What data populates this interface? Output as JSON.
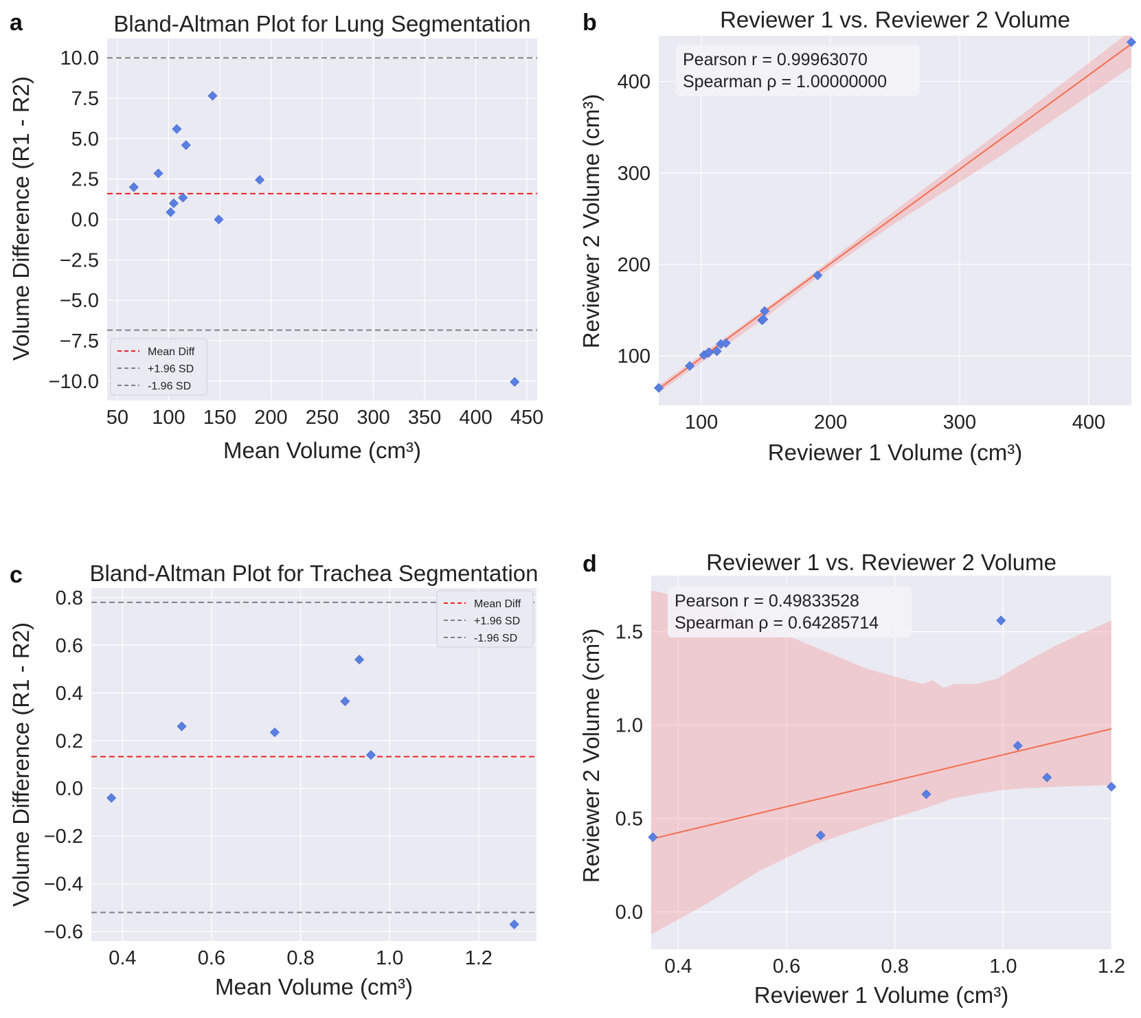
{
  "chart_data": [
    {
      "panel": "a",
      "type": "scatter",
      "title": "Bland-Altman Plot for Lung Segmentation",
      "xlabel": "Mean Volume (cm³)",
      "ylabel": "Volume Difference (R1 - R2)",
      "xlim": [
        40,
        460
      ],
      "ylim": [
        -11.2,
        11.2
      ],
      "xticks": [
        50,
        100,
        150,
        200,
        250,
        300,
        350,
        400,
        450
      ],
      "yticks": [
        -10.0,
        -7.5,
        -5.0,
        -2.5,
        0.0,
        2.5,
        5.0,
        7.5,
        10.0
      ],
      "xtick_labels": [
        "50",
        "100",
        "150",
        "200",
        "250",
        "300",
        "350",
        "400",
        "450"
      ],
      "ytick_labels": [
        "−10.0",
        "−7.5",
        "−5.0",
        "−2.5",
        "0.0",
        "2.5",
        "5.0",
        "7.5",
        "10.0"
      ],
      "points": [
        [
          66,
          2.0
        ],
        [
          90,
          2.85
        ],
        [
          102,
          0.45
        ],
        [
          105,
          1.0
        ],
        [
          108,
          5.6
        ],
        [
          114,
          1.35
        ],
        [
          117,
          4.6
        ],
        [
          143,
          7.65
        ],
        [
          149,
          0.0
        ],
        [
          189,
          2.45
        ],
        [
          438,
          -10.05
        ]
      ],
      "hlines": [
        {
          "name": "Mean Diff",
          "y": 1.6,
          "color": "#ee2222"
        },
        {
          "name": "+1.96 SD",
          "y": 10.0,
          "color": "#808080"
        },
        {
          "name": "-1.96 SD",
          "y": -6.85,
          "color": "#808080"
        }
      ],
      "legend": {
        "position": "lower-left",
        "entries": [
          "Mean Diff",
          "+1.96 SD",
          "-1.96 SD"
        ]
      }
    },
    {
      "panel": "b",
      "type": "scatter",
      "title": "Reviewer 1 vs. Reviewer 2 Volume",
      "xlabel": "Reviewer 1 Volume (cm³)",
      "ylabel": "Reviewer 2 Volume (cm³)",
      "xlim": [
        67,
        433
      ],
      "ylim": [
        46,
        450
      ],
      "xticks": [
        100,
        200,
        300,
        400
      ],
      "yticks": [
        100,
        200,
        300,
        400
      ],
      "xtick_labels": [
        "100",
        "200",
        "300",
        "400"
      ],
      "ytick_labels": [
        "100",
        "200",
        "300",
        "400"
      ],
      "points": [
        [
          67,
          65
        ],
        [
          91,
          89
        ],
        [
          102,
          101
        ],
        [
          105,
          103
        ],
        [
          106,
          104
        ],
        [
          112,
          105
        ],
        [
          115,
          113
        ],
        [
          119,
          114
        ],
        [
          147,
          139
        ],
        [
          148,
          140
        ],
        [
          149,
          149
        ],
        [
          190,
          188
        ],
        [
          433,
          443
        ]
      ],
      "fit": {
        "x": [
          67,
          433
        ],
        "y": [
          64,
          441
        ],
        "color": "#f26e50"
      },
      "band": {
        "x": [
          67,
          150,
          190,
          250,
          330,
          433
        ],
        "upper": [
          68,
          152,
          194,
          259,
          344,
          456
        ],
        "lower": [
          60,
          142,
          186,
          245,
          317,
          416
        ],
        "color": "#f4a6a6"
      },
      "stats": [
        "Pearson r = 0.99963070",
        "Spearman ρ = 1.00000000"
      ]
    },
    {
      "panel": "c",
      "type": "scatter",
      "title": "Bland-Altman Plot for Trachea Segmentation",
      "xlabel": "Mean Volume (cm³)",
      "ylabel": "Volume Difference (R1 - R2)",
      "xlim": [
        0.33,
        1.33
      ],
      "ylim": [
        -0.64,
        0.84
      ],
      "xticks": [
        0.4,
        0.6,
        0.8,
        1.0,
        1.2
      ],
      "yticks": [
        -0.6,
        -0.4,
        -0.2,
        0.0,
        0.2,
        0.4,
        0.6,
        0.8
      ],
      "xtick_labels": [
        "0.4",
        "0.6",
        "0.8",
        "1.0",
        "1.2"
      ],
      "ytick_labels": [
        "−0.6",
        "−0.4",
        "−0.2",
        "0.0",
        "0.2",
        "0.4",
        "0.6",
        "0.8"
      ],
      "points": [
        [
          0.375,
          -0.04
        ],
        [
          0.533,
          0.26
        ],
        [
          0.742,
          0.235
        ],
        [
          0.9,
          0.365
        ],
        [
          0.932,
          0.54
        ],
        [
          0.958,
          0.14
        ],
        [
          1.28,
          -0.57
        ]
      ],
      "hlines": [
        {
          "name": "Mean Diff",
          "y": 0.133,
          "color": "#ee2222"
        },
        {
          "name": "+1.96 SD",
          "y": 0.78,
          "color": "#808080"
        },
        {
          "name": "-1.96 SD",
          "y": -0.52,
          "color": "#808080"
        }
      ],
      "legend": {
        "position": "upper-right",
        "entries": [
          "Mean Diff",
          "+1.96 SD",
          "-1.96 SD"
        ]
      }
    },
    {
      "panel": "d",
      "type": "scatter",
      "title": "Reviewer 1 vs. Reviewer 2 Volume",
      "xlabel": "Reviewer 1 Volume (cm³)",
      "ylabel": "Reviewer 2 Volume (cm³)",
      "xlim": [
        0.35,
        1.2
      ],
      "ylim": [
        -0.2,
        1.8
      ],
      "xticks": [
        0.4,
        0.6,
        0.8,
        1.0,
        1.2
      ],
      "yticks": [
        0.0,
        0.5,
        1.0,
        1.5
      ],
      "xtick_labels": [
        "0.4",
        "0.6",
        "0.8",
        "1.0",
        "1.2"
      ],
      "ytick_labels": [
        "0.0",
        "0.5",
        "1.0",
        "1.5"
      ],
      "points": [
        [
          0.353,
          0.4
        ],
        [
          0.663,
          0.41
        ],
        [
          0.858,
          0.63
        ],
        [
          0.996,
          1.56
        ],
        [
          1.027,
          0.89
        ],
        [
          1.081,
          0.72
        ],
        [
          1.2,
          0.67
        ]
      ],
      "fit": {
        "x": [
          0.35,
          1.2
        ],
        "y": [
          0.39,
          0.98
        ],
        "color": "#f26e50"
      },
      "band": {
        "x": [
          0.35,
          0.45,
          0.55,
          0.65,
          0.75,
          0.85,
          0.87,
          0.89,
          0.91,
          0.95,
          0.99,
          1.03,
          1.1,
          1.2
        ],
        "upper": [
          1.72,
          1.66,
          1.54,
          1.42,
          1.3,
          1.22,
          1.24,
          1.2,
          1.22,
          1.22,
          1.25,
          1.32,
          1.43,
          1.56
        ],
        "lower": [
          -0.12,
          0.04,
          0.22,
          0.36,
          0.46,
          0.55,
          0.57,
          0.59,
          0.61,
          0.63,
          0.65,
          0.66,
          0.67,
          0.68
        ],
        "color": "#f4a6a6"
      },
      "stats": [
        "Pearson r = 0.49833528",
        "Spearman ρ = 0.64285714"
      ]
    }
  ]
}
